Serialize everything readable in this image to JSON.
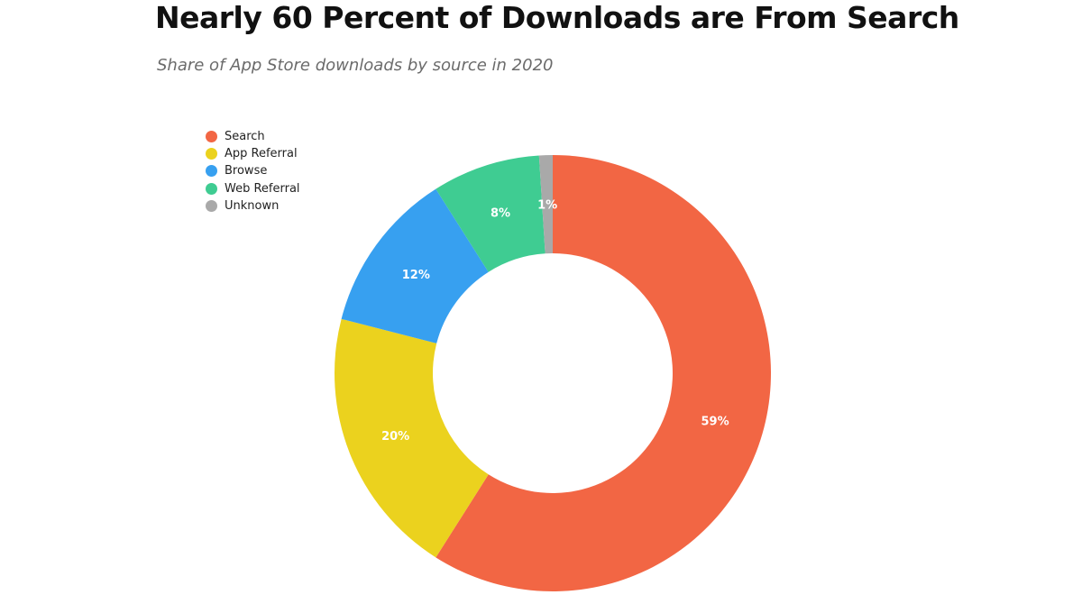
{
  "chart_data": {
    "type": "pie",
    "variant": "donut",
    "title": "Nearly 60 Percent of Downloads are From Search",
    "subtitle": "Share of App Store downloads by source in 2020",
    "legend_position": "top-left",
    "slices": [
      {
        "label": "Search",
        "value": 59,
        "display": "59%",
        "color": "#f26644"
      },
      {
        "label": "App Referral",
        "value": 20,
        "display": "20%",
        "color": "#ebd21e"
      },
      {
        "label": "Browse",
        "value": 12,
        "display": "12%",
        "color": "#37a0f0"
      },
      {
        "label": "Web Referral",
        "value": 8,
        "display": "8%",
        "color": "#3fcc92"
      },
      {
        "label": "Unknown",
        "value": 1,
        "display": "1%",
        "color": "#a9a9a9"
      }
    ]
  }
}
